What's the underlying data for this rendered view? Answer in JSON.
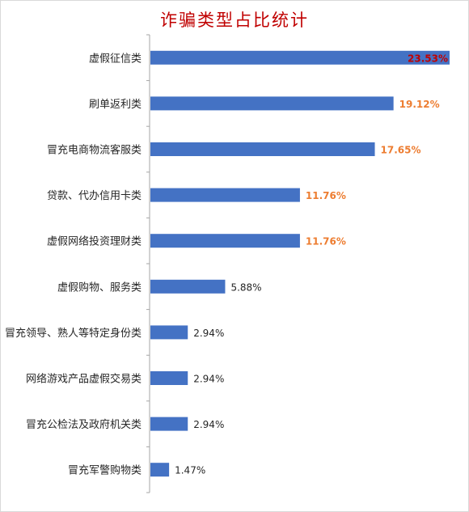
{
  "chart_data": {
    "type": "bar",
    "orientation": "horizontal",
    "title": "诈骗类型占比统计",
    "categories": [
      "虚假征信类",
      "刷单返利类",
      "冒充电商物流客服类",
      "贷款、代办信用卡类",
      "虚假网络投资理财类",
      "虚假购物、服务类",
      "冒充领导、熟人等特定身份类",
      "网络游戏产品虚假交易类",
      "冒充公检法及政府机关类",
      "冒充军警购物类"
    ],
    "values": [
      23.53,
      19.12,
      17.65,
      11.76,
      11.76,
      5.88,
      2.94,
      2.94,
      2.94,
      1.47
    ],
    "value_labels": [
      "23.53%",
      "19.12%",
      "17.65%",
      "11.76%",
      "11.76%",
      "5.88%",
      "2.94%",
      "2.94%",
      "2.94%",
      "1.47%"
    ],
    "label_colors": [
      "#c00000",
      "#ed7d31",
      "#ed7d31",
      "#ed7d31",
      "#ed7d31",
      "#262626",
      "#262626",
      "#262626",
      "#262626",
      "#262626"
    ],
    "bar_color": "#4472c4",
    "xlim": [
      0,
      23.53
    ],
    "grid": false,
    "legend": "none"
  }
}
